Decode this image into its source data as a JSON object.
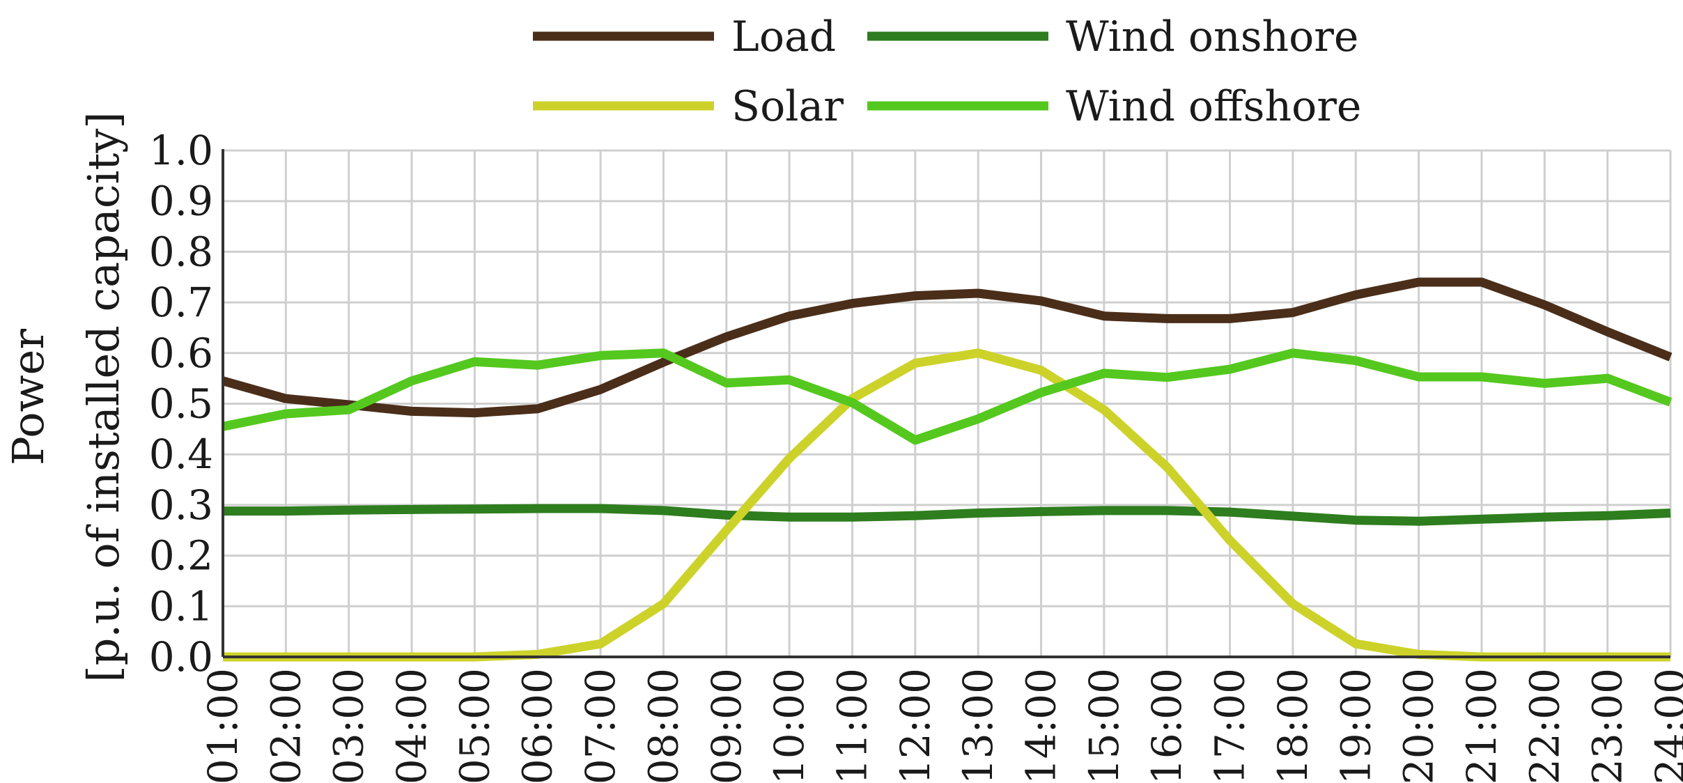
{
  "chart_data": {
    "type": "line",
    "title": "",
    "xlabel": "",
    "ylabel_line1": "Power",
    "ylabel_line2": "[p.u. of installed capacity]",
    "ylim": [
      0.0,
      1.0
    ],
    "yticks": [
      "0.0",
      "0.1",
      "0.2",
      "0.3",
      "0.4",
      "0.5",
      "0.6",
      "0.7",
      "0.8",
      "0.9",
      "1.0"
    ],
    "grid": true,
    "legend_position": "top-center",
    "categories": [
      "01:00",
      "02:00",
      "03:00",
      "04:00",
      "05:00",
      "06:00",
      "07:00",
      "08:00",
      "09:00",
      "10:00",
      "11:00",
      "12:00",
      "13:00",
      "14:00",
      "15:00",
      "16:00",
      "17:00",
      "18:00",
      "19:00",
      "20:00",
      "21:00",
      "22:00",
      "23:00",
      "24:00"
    ],
    "series": [
      {
        "name": "Load",
        "color": "#4a2e1a",
        "values": [
          0.545,
          0.51,
          0.498,
          0.485,
          0.482,
          0.49,
          0.528,
          0.582,
          0.632,
          0.673,
          0.698,
          0.713,
          0.718,
          0.703,
          0.673,
          0.668,
          0.668,
          0.68,
          0.715,
          0.74,
          0.74,
          0.695,
          0.642,
          0.592
        ]
      },
      {
        "name": "Wind onshore",
        "color": "#2e7d1e",
        "values": [
          0.288,
          0.288,
          0.29,
          0.291,
          0.292,
          0.293,
          0.293,
          0.289,
          0.28,
          0.276,
          0.276,
          0.279,
          0.284,
          0.287,
          0.289,
          0.289,
          0.286,
          0.278,
          0.27,
          0.268,
          0.272,
          0.276,
          0.279,
          0.284
        ]
      },
      {
        "name": "Solar",
        "color": "#cdd22a",
        "values": [
          0.0,
          0.0,
          0.0,
          0.0,
          0.0,
          0.005,
          0.026,
          0.105,
          0.25,
          0.392,
          0.51,
          0.58,
          0.6,
          0.566,
          0.488,
          0.375,
          0.23,
          0.105,
          0.026,
          0.005,
          0.0,
          0.0,
          0.0,
          0.0
        ]
      },
      {
        "name": "Wind offshore",
        "color": "#54c81e",
        "values": [
          0.455,
          0.48,
          0.488,
          0.545,
          0.583,
          0.576,
          0.595,
          0.6,
          0.541,
          0.547,
          0.502,
          0.428,
          0.47,
          0.522,
          0.56,
          0.552,
          0.568,
          0.6,
          0.585,
          0.553,
          0.553,
          0.54,
          0.55,
          0.503
        ]
      }
    ]
  }
}
